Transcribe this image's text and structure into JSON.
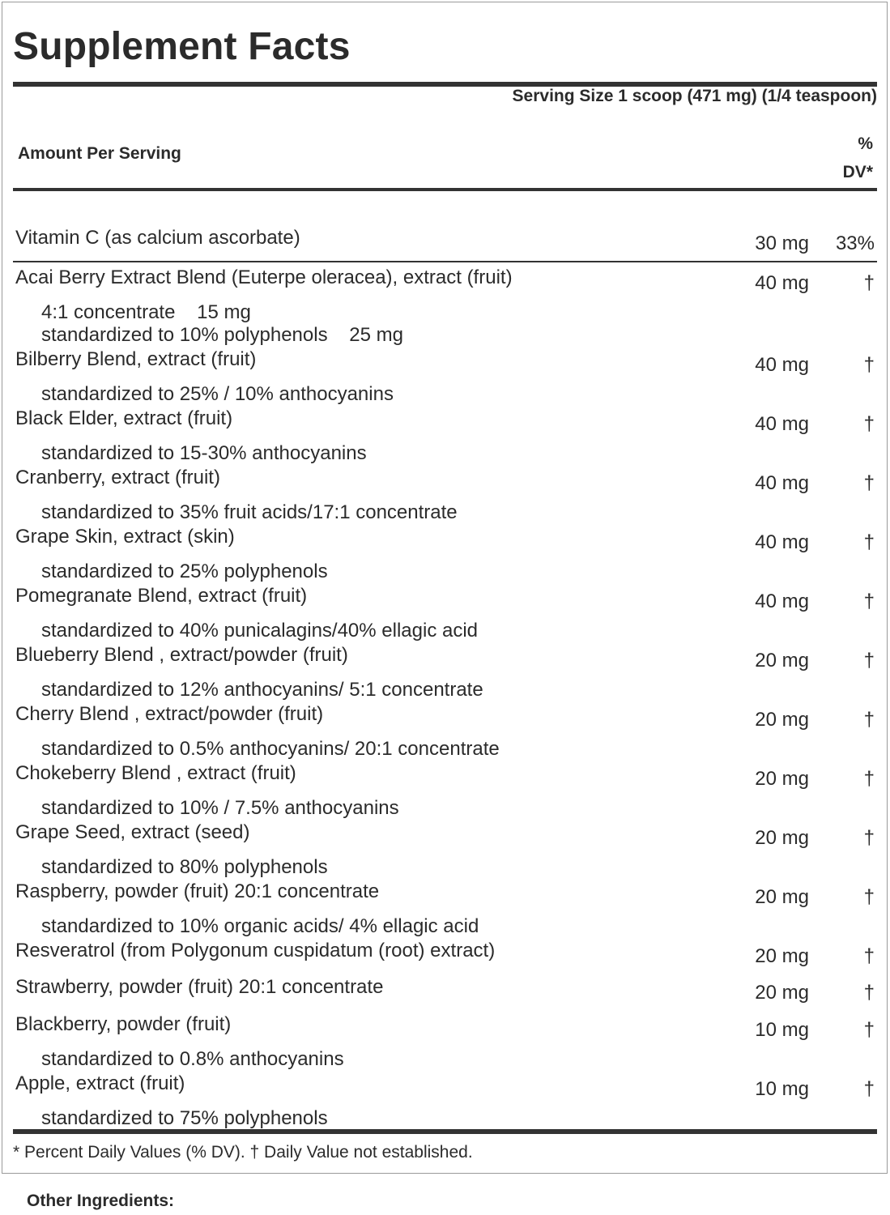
{
  "label": {
    "title": "Supplement Facts",
    "serving_size": "Serving Size 1 scoop (471 mg) (1/4 teaspoon)",
    "amount_per_serving": "Amount Per Serving",
    "dv_header_line1": "%",
    "dv_header_line2": "DV*"
  },
  "vitamin": {
    "name": "Vitamin C (as calcium ascorbate)",
    "amount": "30 mg",
    "dv": "33%"
  },
  "ingredients": [
    {
      "name": "Acai Berry Extract Blend (Euterpe oleracea), extract (fruit)",
      "amount": "40 mg",
      "dv": "†",
      "details": [
        "4:1 concentrate    15 mg",
        "standardized to 10% polyphenols    25 mg"
      ]
    },
    {
      "name": "Bilberry Blend, extract (fruit)",
      "amount": "40 mg",
      "dv": "†",
      "details": [
        "standardized to 25% / 10% anthocyanins"
      ]
    },
    {
      "name": "Black Elder, extract (fruit)",
      "amount": "40 mg",
      "dv": "†",
      "details": [
        "standardized to 15-30% anthocyanins"
      ]
    },
    {
      "name": "Cranberry, extract (fruit)",
      "amount": "40 mg",
      "dv": "†",
      "details": [
        "standardized to 35% fruit acids/17:1 concentrate"
      ]
    },
    {
      "name": "Grape Skin, extract (skin)",
      "amount": "40 mg",
      "dv": "†",
      "details": [
        "standardized to 25% polyphenols"
      ]
    },
    {
      "name": "Pomegranate Blend, extract (fruit)",
      "amount": "40 mg",
      "dv": "†",
      "details": [
        "standardized to 40% punicalagins/40% ellagic acid"
      ]
    },
    {
      "name": "Blueberry Blend , extract/powder (fruit)",
      "amount": "20 mg",
      "dv": "†",
      "details": [
        "standardized to 12% anthocyanins/ 5:1 concentrate"
      ]
    },
    {
      "name": "Cherry Blend , extract/powder (fruit)",
      "amount": "20 mg",
      "dv": "†",
      "details": [
        "standardized to 0.5% anthocyanins/ 20:1 concentrate"
      ]
    },
    {
      "name": "Chokeberry Blend , extract (fruit)",
      "amount": "20 mg",
      "dv": "†",
      "details": [
        "standardized to 10% / 7.5% anthocyanins"
      ]
    },
    {
      "name": "Grape Seed, extract (seed)",
      "amount": "20 mg",
      "dv": "†",
      "details": [
        "standardized to 80% polyphenols"
      ]
    },
    {
      "name": "Raspberry, powder (fruit) 20:1 concentrate",
      "amount": "20 mg",
      "dv": "†",
      "details": [
        "standardized to 10% organic acids/ 4% ellagic acid"
      ]
    },
    {
      "name": "Resveratrol (from Polygonum cuspidatum (root) extract)",
      "amount": "20 mg",
      "dv": "†",
      "details": []
    },
    {
      "name": "Strawberry, powder (fruit) 20:1 concentrate",
      "amount": "20 mg",
      "dv": "†",
      "details": []
    },
    {
      "name": "Blackberry, powder (fruit)",
      "amount": "10 mg",
      "dv": "†",
      "details": [
        "standardized to 0.8% anthocyanins"
      ]
    },
    {
      "name": "Apple, extract (fruit)",
      "amount": "10 mg",
      "dv": "†",
      "details": [
        "standardized to 75% polyphenols"
      ]
    }
  ],
  "footnote": "* Percent Daily Values (% DV). † Daily Value not established.",
  "other_ingredients_label": "Other Ingredients:"
}
